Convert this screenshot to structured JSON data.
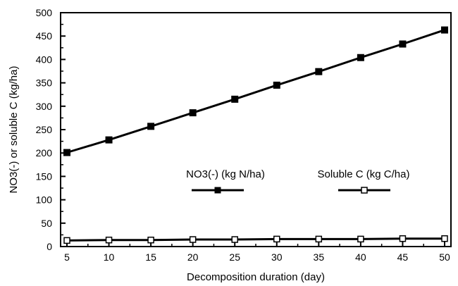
{
  "chart_data": {
    "type": "line",
    "xlabel": "Decomposition duration (day)",
    "ylabel": "NO3(-) or soluble C (kg/ha)",
    "xlim": [
      5,
      50
    ],
    "ylim": [
      0,
      500
    ],
    "xticks": [
      5,
      10,
      15,
      20,
      25,
      30,
      35,
      40,
      45,
      50
    ],
    "yticks": [
      0,
      50,
      100,
      150,
      200,
      250,
      300,
      350,
      400,
      450,
      500
    ],
    "grid": false,
    "legend_position": "center",
    "x": [
      5,
      10,
      15,
      20,
      25,
      30,
      35,
      40,
      45,
      50
    ],
    "series": [
      {
        "name": "NO3(-) (kg N/ha)",
        "marker": "filled-square",
        "color": "#000000",
        "values": [
          201,
          228,
          257,
          286,
          315,
          345,
          374,
          404,
          433,
          463
        ]
      },
      {
        "name": "Soluble C (kg C/ha)",
        "marker": "open-square",
        "color": "#000000",
        "values": [
          13,
          14,
          14,
          15,
          15,
          16,
          16,
          16,
          17,
          17
        ]
      }
    ]
  }
}
